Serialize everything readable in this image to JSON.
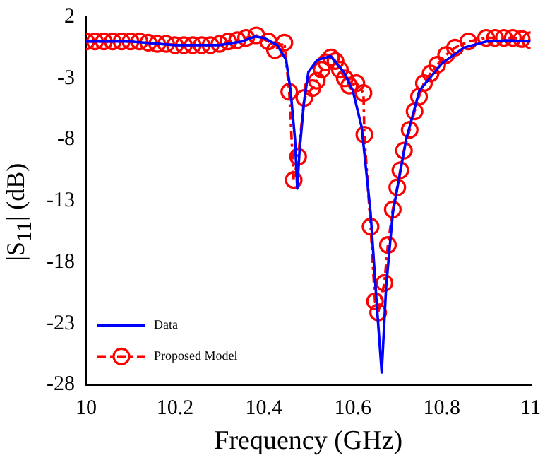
{
  "chart_data": {
    "type": "line",
    "xlabel": "Frequency (GHz)",
    "ylabel": "|S$_{11}$| (dB)",
    "xlim": [
      10,
      11
    ],
    "xticks": [
      10,
      10.2,
      10.4,
      10.6,
      10.8,
      11
    ],
    "ylim": [
      -28,
      2
    ],
    "yticks": [
      2,
      -3,
      -8,
      -13,
      -18,
      -23,
      -28
    ],
    "grid": false,
    "legend": "bottom left",
    "series": [
      {
        "name": "Data",
        "color": "#0000ff",
        "line_style": "solid",
        "marker": "none",
        "x": [
          10,
          10.1,
          10.2,
          10.3,
          10.35,
          10.38,
          10.4,
          10.43,
          10.45,
          10.46,
          10.47,
          10.475,
          10.48,
          10.49,
          10.5,
          10.52,
          10.55,
          10.58,
          10.6,
          10.62,
          10.64,
          10.655,
          10.665,
          10.675,
          10.69,
          10.72,
          10.75,
          10.8,
          10.85,
          10.9,
          10.95,
          11
        ],
        "values": [
          0,
          0,
          -0.3,
          -0.3,
          0,
          0.4,
          0.3,
          -0.3,
          -1.5,
          -4,
          -8,
          -12,
          -9,
          -5,
          -2.5,
          -1.5,
          -1.2,
          -2.5,
          -4,
          -7,
          -14,
          -22,
          -27,
          -20,
          -14,
          -8,
          -4,
          -1.8,
          -0.5,
          0,
          0.1,
          0
        ]
      },
      {
        "name": "Proposed Model",
        "color": "#ff0000",
        "line_style": "dashed",
        "marker": "circle",
        "x": [
          10,
          10.02,
          10.04,
          10.06,
          10.08,
          10.1,
          10.12,
          10.14,
          10.16,
          10.18,
          10.2,
          10.22,
          10.24,
          10.26,
          10.28,
          10.3,
          10.32,
          10.34,
          10.36,
          10.383,
          10.41,
          10.425,
          10.446,
          10.457,
          10.467,
          10.477,
          10.491,
          10.509,
          10.519,
          10.53,
          10.54,
          10.551,
          10.561,
          10.571,
          10.582,
          10.592,
          10.608,
          10.624,
          10.626,
          10.64,
          10.65,
          10.657,
          10.671,
          10.679,
          10.69,
          10.7,
          10.707,
          10.715,
          10.728,
          10.739,
          10.749,
          10.76,
          10.775,
          10.79,
          10.81,
          10.83,
          10.86,
          10.9,
          10.92,
          10.94,
          10.96,
          10.98,
          11
        ],
        "values": [
          0,
          0,
          0,
          0,
          0,
          0,
          0,
          -0.1,
          -0.2,
          -0.2,
          -0.3,
          -0.3,
          -0.3,
          -0.3,
          -0.3,
          -0.2,
          0,
          0.1,
          0.3,
          0.5,
          0,
          -0.7,
          -0.1,
          -4.1,
          -11.3,
          -9.4,
          -4.6,
          -3.8,
          -3.2,
          -2.3,
          -1.7,
          -1.3,
          -1.6,
          -2.3,
          -3,
          -3.6,
          -3.4,
          -4.2,
          -7.6,
          -15.1,
          -21.2,
          -22.1,
          -19.7,
          -16.6,
          -13.7,
          -11.9,
          -10.5,
          -8.9,
          -7.2,
          -5.7,
          -4.5,
          -3.4,
          -2.6,
          -1.9,
          -1.1,
          -0.5,
          0,
          0.3,
          0.3,
          0.3,
          0.3,
          0.2,
          0.1
        ]
      }
    ]
  }
}
